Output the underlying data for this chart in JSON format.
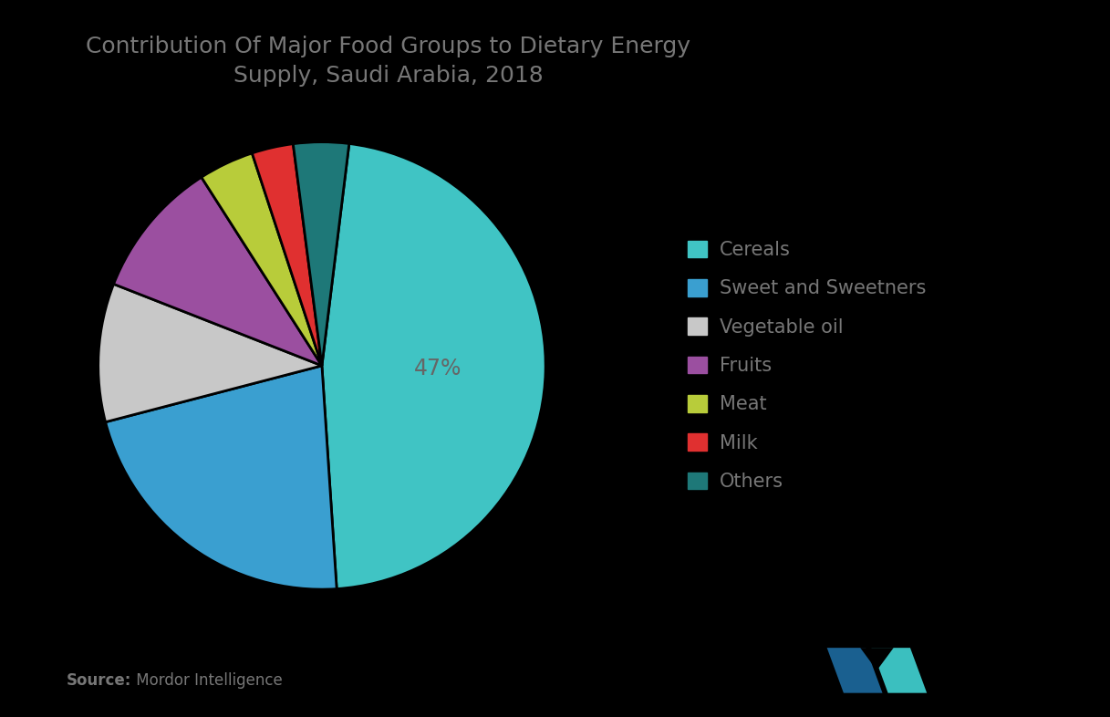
{
  "title": "Contribution Of Major Food Groups to Dietary Energy\nSupply, Saudi Arabia, 2018",
  "labels": [
    "Cereals",
    "Sweet and Sweetners",
    "Vegetable oil",
    "Fruits",
    "Meat",
    "Milk",
    "Others"
  ],
  "values": [
    47,
    22,
    10,
    10,
    4,
    3,
    4
  ],
  "colors": [
    "#40C4C4",
    "#3A9FD0",
    "#C8C8C8",
    "#9B4FA0",
    "#B8CC3A",
    "#E03030",
    "#1E7878"
  ],
  "pct_label": "47%",
  "startangle": 83,
  "background_color": "#000000",
  "text_color": "#777777",
  "pct_color": "#666666",
  "source_bold": "Source:",
  "source_normal": " Mordor Intelligence",
  "title_fontsize": 18,
  "legend_fontsize": 15,
  "pct_fontsize": 17,
  "source_fontsize": 12,
  "logo_color1": "#1A6090",
  "logo_color2": "#3BBFBF"
}
